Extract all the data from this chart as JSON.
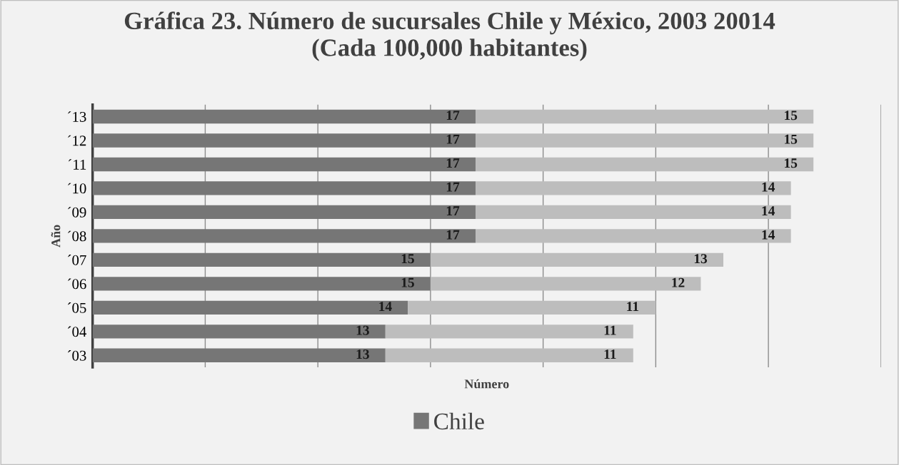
{
  "chart_data": {
    "type": "bar",
    "orientation": "horizontal",
    "stacked": true,
    "title": "Gráfica 23. Número de sucursales Chile y México, 2003 20014\n(Cada 100,000 habitantes)",
    "xlabel": "Número",
    "ylabel": "Año",
    "categories": [
      "´13",
      "´12",
      "´11",
      "´10",
      "´09",
      "´08",
      "´07",
      "´06",
      "´05",
      "´04",
      "´03"
    ],
    "series": [
      {
        "name": "Chile",
        "color": "#767676",
        "values": [
          17,
          17,
          17,
          17,
          17,
          17,
          15,
          15,
          14,
          13,
          13
        ]
      },
      {
        "color": "#bdbdbd",
        "values": [
          15,
          15,
          15,
          14,
          14,
          14,
          13,
          12,
          11,
          11,
          11
        ]
      }
    ],
    "xlim": [
      0,
      35
    ],
    "xticks": [
      {
        "value": 5,
        "label": null
      },
      {
        "value": 10,
        "label": null
      },
      {
        "value": 15,
        "label": null
      },
      {
        "value": 20,
        "label": null
      },
      {
        "value": 25,
        "label": null
      },
      {
        "value": 30,
        "label": null
      },
      {
        "value": 35,
        "label": null
      }
    ],
    "tick_labels": "y",
    "grid": "x",
    "legend": "bottom",
    "data_labels": true
  }
}
